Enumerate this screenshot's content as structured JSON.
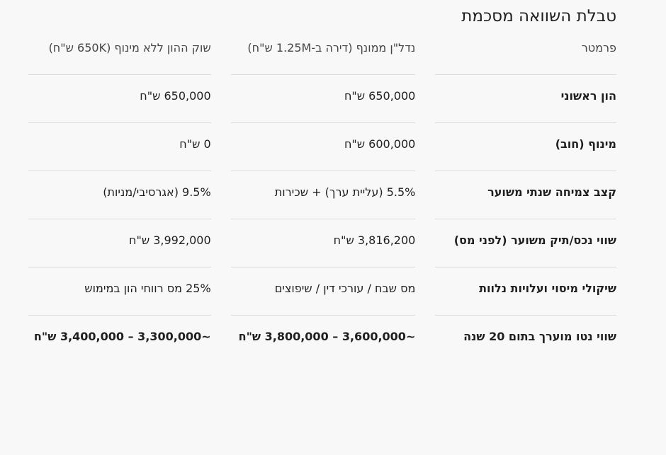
{
  "title": "טבלת השוואה מסכמת",
  "table": {
    "header": [
      "פרמטר",
      "נדל\"ן ממונף (דירה ב-1.25M ש\"ח)",
      "שוק ההון ללא מינוף (650K ש\"ח)"
    ],
    "rows": [
      [
        "הון ראשוני",
        "650,000 ש\"ח",
        "650,000 ש\"ח"
      ],
      [
        "מינוף (חוב)",
        "600,000 ש\"ח",
        "0 ש\"ח"
      ],
      [
        "קצב צמיחה שנתי משוער",
        "5.5% (עליית ערך) + שכירות",
        "9.5% (אגרסיבי/מניות)"
      ],
      [
        "שווי נכס/תיק משוער (לפני מס)",
        "3,816,200 ש\"ח",
        "3,992,000 ש\"ח"
      ],
      [
        "שיקולי מיסוי ועלויות נלוות",
        "מס שבח / עורכי דין / שיפוצים",
        "25% מס רווחי הון במימוש"
      ],
      [
        "שווי נטו מוערך בתום 20 שנה",
        "~3,600,000 – 3,800,000 ש\"ח",
        "~3,300,000 – 3,400,000 ש\"ח"
      ]
    ]
  }
}
